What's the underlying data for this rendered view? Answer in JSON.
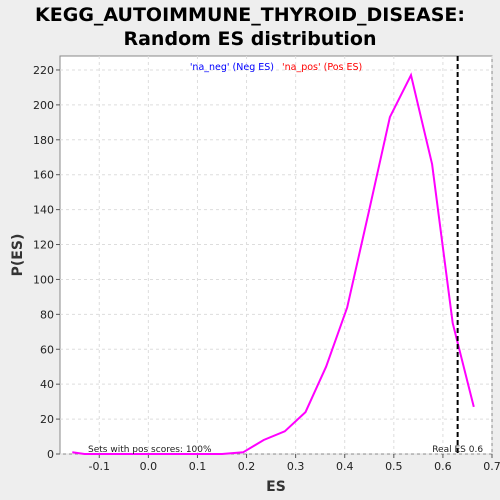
{
  "chart_data": {
    "type": "line",
    "title_line1": "KEGG_AUTOIMMUNE_THYROID_DISEASE:",
    "title_line2": "Random ES distribution",
    "xlabel": "ES",
    "ylabel": "P(ES)",
    "xlim": [
      -0.18,
      0.7
    ],
    "ylim": [
      0,
      228
    ],
    "x_ticks": [
      "-0.1",
      "0.0",
      "0.1",
      "0.2",
      "0.3",
      "0.4",
      "0.5",
      "0.6",
      "0.7"
    ],
    "x_tick_values": [
      -0.1,
      0.0,
      0.1,
      0.2,
      0.3,
      0.4,
      0.5,
      0.6,
      0.7
    ],
    "y_ticks": [
      "0",
      "20",
      "40",
      "60",
      "80",
      "100",
      "120",
      "140",
      "160",
      "180",
      "200",
      "220"
    ],
    "y_tick_values": [
      0,
      20,
      40,
      60,
      80,
      100,
      120,
      140,
      160,
      180,
      200,
      220
    ],
    "grid": true,
    "legend": {
      "neg_label": "'na_neg' (Neg ES)",
      "pos_label": "'na_pos' (Pos ES)",
      "neg_color": "#0000ff",
      "pos_color": "#ff0000",
      "placement": "top-center"
    },
    "series": [
      {
        "color": "#ff00ff",
        "x": [
          -0.155,
          -0.13,
          0.15,
          0.193,
          0.235,
          0.278,
          0.32,
          0.362,
          0.405,
          0.45,
          0.492,
          0.535,
          0.578,
          0.62,
          0.663
        ],
        "y": [
          1,
          0,
          0,
          1,
          8,
          13,
          24,
          50,
          84,
          140,
          193,
          217,
          166,
          75,
          27
        ]
      }
    ],
    "real_es": {
      "x": 0.63,
      "label": "Real ES 0.6",
      "style": "dashed",
      "color": "#000000"
    },
    "annotation": "Sets with pos scores: 100%"
  }
}
